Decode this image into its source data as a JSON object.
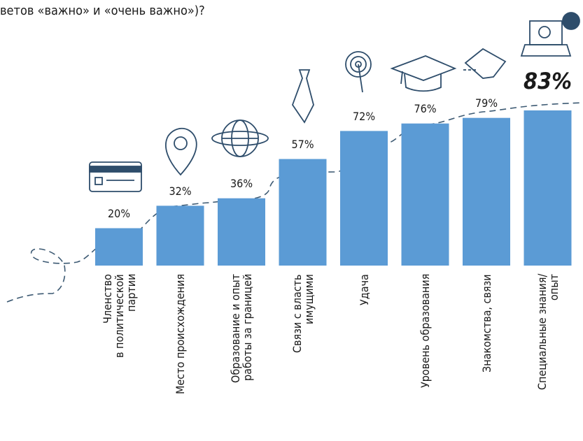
{
  "chart_data": {
    "type": "bar",
    "subtitle": "ветов «важно» и «очень важно»)?",
    "categories": [
      "Членство\nв политической\nпартии",
      "Место происхождения",
      "Образование и опыт\nработы за границей",
      "Связи с власть\nимущими",
      "Удача",
      "Уровень образования",
      "Знакомства, связи",
      "Специальные знания/\nопыт"
    ],
    "values": [
      20,
      32,
      36,
      57,
      72,
      76,
      79,
      83
    ],
    "value_labels": [
      "20%",
      "32%",
      "36%",
      "57%",
      "72%",
      "76%",
      "79%",
      "83%"
    ],
    "color": "#5b9bd5"
  }
}
